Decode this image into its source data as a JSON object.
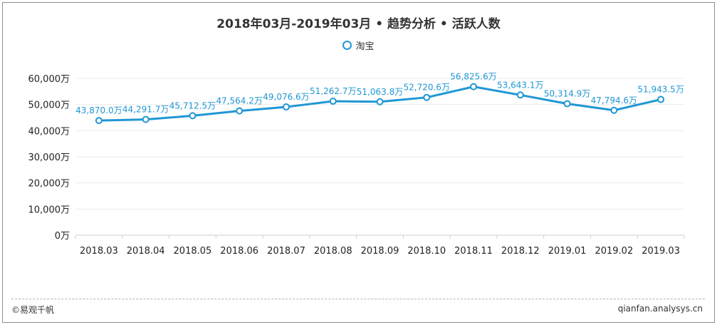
{
  "chart_data": {
    "type": "line",
    "title": "2018年03月-2019年03月 • 趋势分析 • 活跃人数",
    "categories": [
      "2018.03",
      "2018.04",
      "2018.05",
      "2018.06",
      "2018.07",
      "2018.08",
      "2018.09",
      "2018.10",
      "2018.11",
      "2018.12",
      "2019.01",
      "2019.02",
      "2019.03"
    ],
    "series": [
      {
        "name": "淘宝",
        "values": [
          43870.0,
          44291.7,
          45712.5,
          47564.2,
          49076.6,
          51262.7,
          51063.8,
          52720.6,
          56825.6,
          53643.1,
          50314.9,
          47794.6,
          51943.5
        ],
        "labels": [
          "43,870.0万",
          "44,291.7万",
          "45,712.5万",
          "47,564.2万",
          "49,076.6万",
          "51,262.7万",
          "51,063.8万",
          "52,720.6万",
          "56,825.6万",
          "53,643.1万",
          "50,314.9万",
          "47,794.6万",
          "51,943.5万"
        ]
      }
    ],
    "ylim": [
      0,
      60000
    ],
    "yticks": [
      "0万",
      "10,000万",
      "20,000万",
      "30,000万",
      "40,000万",
      "50,000万",
      "60,000万"
    ],
    "legend_position": "top-center",
    "grid": true,
    "colors": {
      "line": "#1f97d4",
      "grid": "#ececec"
    }
  },
  "footer": {
    "left": "©易观千帆",
    "right": "qianfan.analysys.cn"
  }
}
